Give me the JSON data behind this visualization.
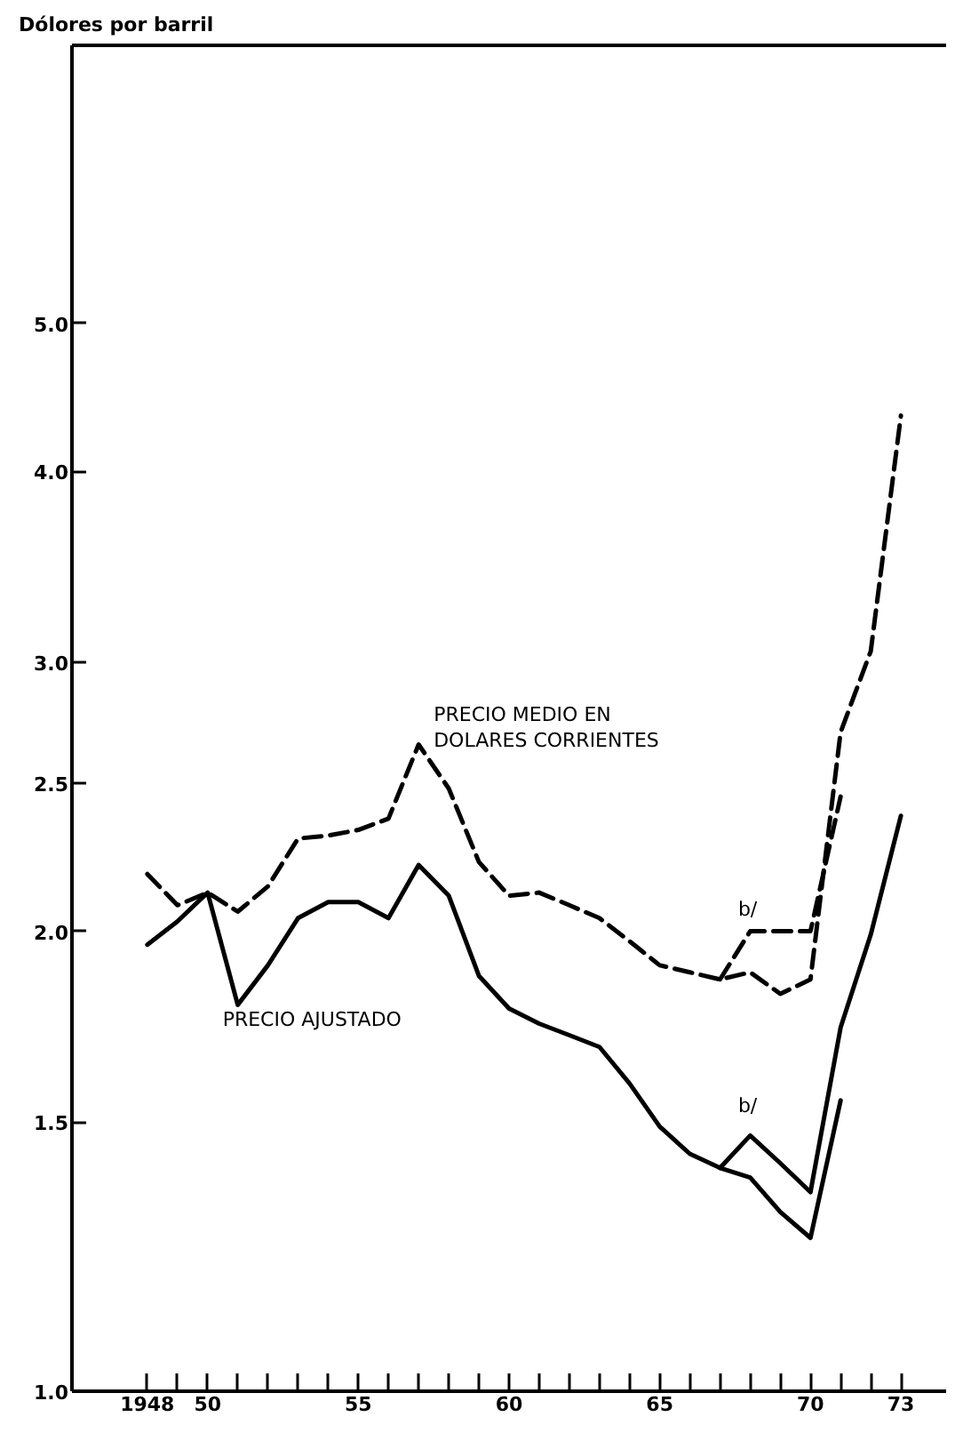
{
  "chart_data": {
    "type": "line",
    "ylabel": "Dólores por barril",
    "log": "y",
    "grid": false,
    "xlim": [
      1945.5,
      1974.5
    ],
    "ylim": [
      1.0,
      7.6
    ],
    "xticks": [
      {
        "value": 1948,
        "label": "1948"
      },
      {
        "value": 1949,
        "label": null
      },
      {
        "value": 1950,
        "label": "50"
      },
      {
        "value": 1951,
        "label": null
      },
      {
        "value": 1952,
        "label": null
      },
      {
        "value": 1953,
        "label": null
      },
      {
        "value": 1954,
        "label": null
      },
      {
        "value": 1955,
        "label": "55"
      },
      {
        "value": 1956,
        "label": null
      },
      {
        "value": 1957,
        "label": null
      },
      {
        "value": 1958,
        "label": null
      },
      {
        "value": 1959,
        "label": null
      },
      {
        "value": 1960,
        "label": "60"
      },
      {
        "value": 1961,
        "label": null
      },
      {
        "value": 1962,
        "label": null
      },
      {
        "value": 1963,
        "label": null
      },
      {
        "value": 1964,
        "label": null
      },
      {
        "value": 1965,
        "label": "65"
      },
      {
        "value": 1966,
        "label": null
      },
      {
        "value": 1967,
        "label": null
      },
      {
        "value": 1968,
        "label": null
      },
      {
        "value": 1969,
        "label": null
      },
      {
        "value": 1970,
        "label": "70"
      },
      {
        "value": 1971,
        "label": null
      },
      {
        "value": 1972,
        "label": null
      },
      {
        "value": 1973,
        "label": "73"
      }
    ],
    "yticks": [
      {
        "value": 1.0,
        "label": "1.0"
      },
      1.5,
      {
        "value": 2.0,
        "label": "2.0"
      },
      2.5,
      {
        "value": 3.0,
        "label": "3.0"
      },
      {
        "value": 4.0,
        "label": "4.0"
      },
      {
        "value": 5.0,
        "label": "5.0"
      }
    ],
    "series": [
      {
        "color": "#000000",
        "line_style": "dashed",
        "x": [
          1948,
          1949,
          1950,
          1951,
          1952,
          1953,
          1954,
          1955,
          1956,
          1957,
          1958,
          1959,
          1960,
          1961,
          1962,
          1963,
          1964,
          1965,
          1966,
          1967,
          1968,
          1969,
          1970,
          1971,
          1972,
          1973
        ],
        "values": [
          2.18,
          2.08,
          2.12,
          2.06,
          2.14,
          2.3,
          2.31,
          2.33,
          2.37,
          2.65,
          2.48,
          2.22,
          2.11,
          2.12,
          2.08,
          2.04,
          1.97,
          1.9,
          1.88,
          1.86,
          1.88,
          1.82,
          1.86,
          2.7,
          3.05,
          4.35
        ]
      },
      {
        "color": "#000000",
        "line_style": "dashed",
        "x": [
          1967,
          1968,
          1969,
          1970,
          1971
        ],
        "values": [
          1.86,
          2.0,
          2.0,
          2.0,
          2.45
        ]
      },
      {
        "color": "#000000",
        "line_style": "solid",
        "x": [
          1948,
          1949,
          1950,
          1951,
          1952,
          1953,
          1954,
          1955,
          1956,
          1957,
          1958,
          1959,
          1960,
          1961,
          1962,
          1963,
          1964,
          1965,
          1966,
          1967,
          1968,
          1969,
          1970,
          1971
        ],
        "values": [
          1.96,
          2.03,
          2.12,
          1.79,
          1.9,
          2.04,
          2.09,
          2.09,
          2.04,
          2.21,
          2.11,
          1.87,
          1.78,
          1.74,
          1.71,
          1.68,
          1.59,
          1.49,
          1.43,
          1.4,
          1.38,
          1.31,
          1.26,
          1.55
        ]
      },
      {
        "color": "#000000",
        "line_style": "solid",
        "x": [
          1967,
          1968,
          1969,
          1970,
          1971,
          1972,
          1973
        ],
        "values": [
          1.4,
          1.47,
          1.41,
          1.35,
          1.73,
          1.99,
          2.38
        ]
      }
    ],
    "annotations": [
      "PRECIO MEDIO EN\nDOLARES CORRIENTES",
      "PRECIO AJUSTADO",
      "b/",
      "b/"
    ]
  }
}
